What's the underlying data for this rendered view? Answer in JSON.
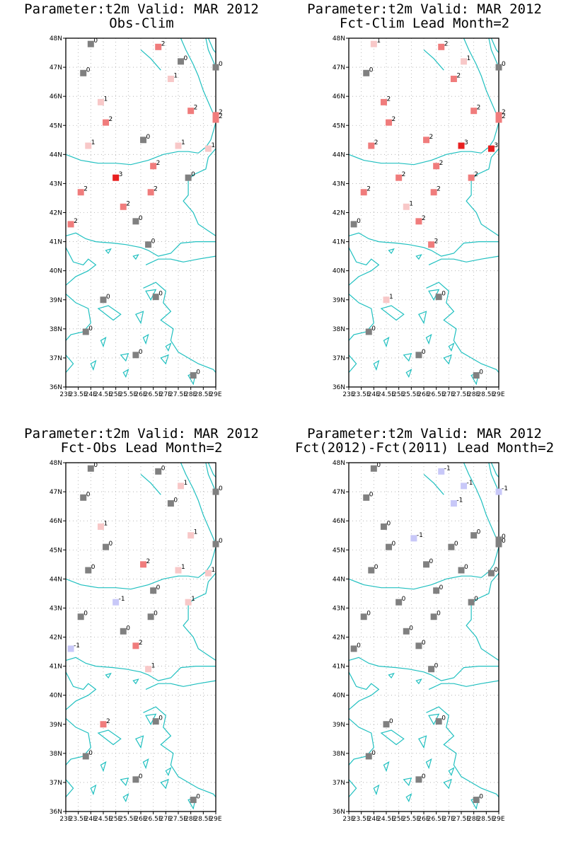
{
  "palette": {
    "0": "#808080",
    "1": "#f8c8c8",
    "2": "#f07c7c",
    "3": "#e82020",
    "-1": "#c8c8f8",
    "coast": "#20c0c0",
    "grid": "#aaaaaa"
  },
  "axes": {
    "lat_labels": [
      "48N",
      "47N",
      "46N",
      "45N",
      "44N",
      "43N",
      "42N",
      "41N",
      "40N",
      "39N",
      "38N",
      "37N",
      "36N"
    ],
    "lon_labels": [
      "23E",
      "23.5E",
      "24E",
      "24.5E",
      "25E",
      "25.5E",
      "26E",
      "26.5E",
      "27E",
      "27.5E",
      "28E",
      "28.5E",
      "29E"
    ],
    "lat_range": [
      36,
      48
    ],
    "lon_range": [
      23,
      29
    ]
  },
  "panels": [
    {
      "title1": "Parameter:t2m Valid: MAR 2012",
      "title2": "Obs-Clim",
      "stations": [
        {
          "lon": 24.0,
          "lat": 47.8,
          "v": "0"
        },
        {
          "lon": 26.7,
          "lat": 47.7,
          "v": "2"
        },
        {
          "lon": 27.6,
          "lat": 47.2,
          "v": "0"
        },
        {
          "lon": 29.0,
          "lat": 47.0,
          "v": "0"
        },
        {
          "lon": 23.7,
          "lat": 46.8,
          "v": "0"
        },
        {
          "lon": 27.2,
          "lat": 46.6,
          "v": "1"
        },
        {
          "lon": 24.4,
          "lat": 45.8,
          "v": "1"
        },
        {
          "lon": 28.0,
          "lat": 45.5,
          "v": "2"
        },
        {
          "lon": 29.0,
          "lat": 45.35,
          "v": "2"
        },
        {
          "lon": 24.6,
          "lat": 45.1,
          "v": "2"
        },
        {
          "lon": 29.0,
          "lat": 45.2,
          "v": "2"
        },
        {
          "lon": 26.1,
          "lat": 44.5,
          "v": "0"
        },
        {
          "lon": 23.9,
          "lat": 44.3,
          "v": "1"
        },
        {
          "lon": 27.5,
          "lat": 44.3,
          "v": "1"
        },
        {
          "lon": 28.7,
          "lat": 44.2,
          "v": "1"
        },
        {
          "lon": 26.5,
          "lat": 43.6,
          "v": "2"
        },
        {
          "lon": 25.0,
          "lat": 43.2,
          "v": "3"
        },
        {
          "lon": 27.9,
          "lat": 43.2,
          "v": "0"
        },
        {
          "lon": 23.6,
          "lat": 42.7,
          "v": "2"
        },
        {
          "lon": 26.4,
          "lat": 42.7,
          "v": "2"
        },
        {
          "lon": 25.3,
          "lat": 42.2,
          "v": "2"
        },
        {
          "lon": 25.8,
          "lat": 41.7,
          "v": "0"
        },
        {
          "lon": 23.2,
          "lat": 41.6,
          "v": "2"
        },
        {
          "lon": 26.3,
          "lat": 40.9,
          "v": "0"
        },
        {
          "lon": 24.5,
          "lat": 39.0,
          "v": "0"
        },
        {
          "lon": 26.6,
          "lat": 39.1,
          "v": "0"
        },
        {
          "lon": 23.8,
          "lat": 37.9,
          "v": "0"
        },
        {
          "lon": 25.8,
          "lat": 37.1,
          "v": "0"
        },
        {
          "lon": 28.1,
          "lat": 36.4,
          "v": "0"
        }
      ]
    },
    {
      "title1": "Parameter:t2m Valid: MAR 2012",
      "title2": "Fct-Clim Lead Month=2",
      "stations": [
        {
          "lon": 24.0,
          "lat": 47.8,
          "v": "1"
        },
        {
          "lon": 26.7,
          "lat": 47.7,
          "v": "2"
        },
        {
          "lon": 27.6,
          "lat": 47.2,
          "v": "1"
        },
        {
          "lon": 29.0,
          "lat": 47.0,
          "v": "0"
        },
        {
          "lon": 23.7,
          "lat": 46.8,
          "v": "0"
        },
        {
          "lon": 27.2,
          "lat": 46.6,
          "v": "2"
        },
        {
          "lon": 24.4,
          "lat": 45.8,
          "v": "2"
        },
        {
          "lon": 28.0,
          "lat": 45.5,
          "v": "2"
        },
        {
          "lon": 29.0,
          "lat": 45.35,
          "v": "2"
        },
        {
          "lon": 24.6,
          "lat": 45.1,
          "v": "2"
        },
        {
          "lon": 29.0,
          "lat": 45.2,
          "v": "2"
        },
        {
          "lon": 26.1,
          "lat": 44.5,
          "v": "2"
        },
        {
          "lon": 23.9,
          "lat": 44.3,
          "v": "2"
        },
        {
          "lon": 27.5,
          "lat": 44.3,
          "v": "3"
        },
        {
          "lon": 28.7,
          "lat": 44.2,
          "v": "3"
        },
        {
          "lon": 26.5,
          "lat": 43.6,
          "v": "2"
        },
        {
          "lon": 25.0,
          "lat": 43.2,
          "v": "2"
        },
        {
          "lon": 27.9,
          "lat": 43.2,
          "v": "2"
        },
        {
          "lon": 23.6,
          "lat": 42.7,
          "v": "2"
        },
        {
          "lon": 26.4,
          "lat": 42.7,
          "v": "2"
        },
        {
          "lon": 25.3,
          "lat": 42.2,
          "v": "1"
        },
        {
          "lon": 25.8,
          "lat": 41.7,
          "v": "2"
        },
        {
          "lon": 23.2,
          "lat": 41.6,
          "v": "0"
        },
        {
          "lon": 26.3,
          "lat": 40.9,
          "v": "2"
        },
        {
          "lon": 24.5,
          "lat": 39.0,
          "v": "1"
        },
        {
          "lon": 26.6,
          "lat": 39.1,
          "v": "0"
        },
        {
          "lon": 23.8,
          "lat": 37.9,
          "v": "0"
        },
        {
          "lon": 25.8,
          "lat": 37.1,
          "v": "0"
        },
        {
          "lon": 28.1,
          "lat": 36.4,
          "v": "0"
        }
      ]
    },
    {
      "title1": "Parameter:t2m Valid: MAR 2012",
      "title2": "Fct-Obs Lead Month=2",
      "stations": [
        {
          "lon": 24.0,
          "lat": 47.8,
          "v": "0"
        },
        {
          "lon": 26.7,
          "lat": 47.7,
          "v": "0"
        },
        {
          "lon": 27.6,
          "lat": 47.2,
          "v": "1"
        },
        {
          "lon": 29.0,
          "lat": 47.0,
          "v": "0"
        },
        {
          "lon": 23.7,
          "lat": 46.8,
          "v": "0"
        },
        {
          "lon": 27.2,
          "lat": 46.6,
          "v": "0"
        },
        {
          "lon": 24.4,
          "lat": 45.8,
          "v": "1"
        },
        {
          "lon": 28.0,
          "lat": 45.5,
          "v": "1"
        },
        {
          "lon": 29.0,
          "lat": 45.2,
          "v": "0"
        },
        {
          "lon": 24.6,
          "lat": 45.1,
          "v": "0"
        },
        {
          "lon": 26.1,
          "lat": 44.5,
          "v": "2"
        },
        {
          "lon": 23.9,
          "lat": 44.3,
          "v": "0"
        },
        {
          "lon": 27.5,
          "lat": 44.3,
          "v": "1"
        },
        {
          "lon": 28.7,
          "lat": 44.2,
          "v": "1"
        },
        {
          "lon": 26.5,
          "lat": 43.6,
          "v": "0"
        },
        {
          "lon": 25.0,
          "lat": 43.2,
          "v": "-1"
        },
        {
          "lon": 27.9,
          "lat": 43.2,
          "v": "1"
        },
        {
          "lon": 23.6,
          "lat": 42.7,
          "v": "0"
        },
        {
          "lon": 26.4,
          "lat": 42.7,
          "v": "0"
        },
        {
          "lon": 25.3,
          "lat": 42.2,
          "v": "0"
        },
        {
          "lon": 25.8,
          "lat": 41.7,
          "v": "2"
        },
        {
          "lon": 23.2,
          "lat": 41.6,
          "v": "-1"
        },
        {
          "lon": 26.3,
          "lat": 40.9,
          "v": "1"
        },
        {
          "lon": 24.5,
          "lat": 39.0,
          "v": "2"
        },
        {
          "lon": 26.6,
          "lat": 39.1,
          "v": "0"
        },
        {
          "lon": 23.8,
          "lat": 37.9,
          "v": "0"
        },
        {
          "lon": 25.8,
          "lat": 37.1,
          "v": "0"
        },
        {
          "lon": 28.1,
          "lat": 36.4,
          "v": "0"
        }
      ]
    },
    {
      "title1": "Parameter:t2m Valid: MAR 2012",
      "title2": "Fct(2012)-Fct(2011) Lead Month=2",
      "stations": [
        {
          "lon": 24.0,
          "lat": 47.8,
          "v": "0"
        },
        {
          "lon": 26.7,
          "lat": 47.7,
          "v": "-1"
        },
        {
          "lon": 27.6,
          "lat": 47.2,
          "v": "-1"
        },
        {
          "lon": 29.0,
          "lat": 47.0,
          "v": "-1"
        },
        {
          "lon": 23.7,
          "lat": 46.8,
          "v": "0"
        },
        {
          "lon": 27.2,
          "lat": 46.6,
          "v": "-1"
        },
        {
          "lon": 24.4,
          "lat": 45.8,
          "v": "0"
        },
        {
          "lon": 25.6,
          "lat": 45.4,
          "v": "-1"
        },
        {
          "lon": 28.0,
          "lat": 45.5,
          "v": "0"
        },
        {
          "lon": 29.0,
          "lat": 45.35,
          "v": "0"
        },
        {
          "lon": 24.6,
          "lat": 45.1,
          "v": "0"
        },
        {
          "lon": 29.0,
          "lat": 45.2,
          "v": "0"
        },
        {
          "lon": 27.1,
          "lat": 45.1,
          "v": "0"
        },
        {
          "lon": 26.1,
          "lat": 44.5,
          "v": "0"
        },
        {
          "lon": 23.9,
          "lat": 44.3,
          "v": "0"
        },
        {
          "lon": 27.5,
          "lat": 44.3,
          "v": "0"
        },
        {
          "lon": 28.7,
          "lat": 44.2,
          "v": "0"
        },
        {
          "lon": 26.5,
          "lat": 43.6,
          "v": "0"
        },
        {
          "lon": 25.0,
          "lat": 43.2,
          "v": "0"
        },
        {
          "lon": 27.9,
          "lat": 43.2,
          "v": "0"
        },
        {
          "lon": 23.6,
          "lat": 42.7,
          "v": "0"
        },
        {
          "lon": 26.4,
          "lat": 42.7,
          "v": "0"
        },
        {
          "lon": 25.3,
          "lat": 42.2,
          "v": "0"
        },
        {
          "lon": 25.8,
          "lat": 41.7,
          "v": "0"
        },
        {
          "lon": 23.2,
          "lat": 41.6,
          "v": "0"
        },
        {
          "lon": 26.3,
          "lat": 40.9,
          "v": "0"
        },
        {
          "lon": 24.5,
          "lat": 39.0,
          "v": "0"
        },
        {
          "lon": 26.6,
          "lat": 39.1,
          "v": "0"
        },
        {
          "lon": 23.8,
          "lat": 37.9,
          "v": "0"
        },
        {
          "lon": 25.8,
          "lat": 37.1,
          "v": "0"
        },
        {
          "lon": 28.1,
          "lat": 36.4,
          "v": "0"
        }
      ]
    }
  ]
}
